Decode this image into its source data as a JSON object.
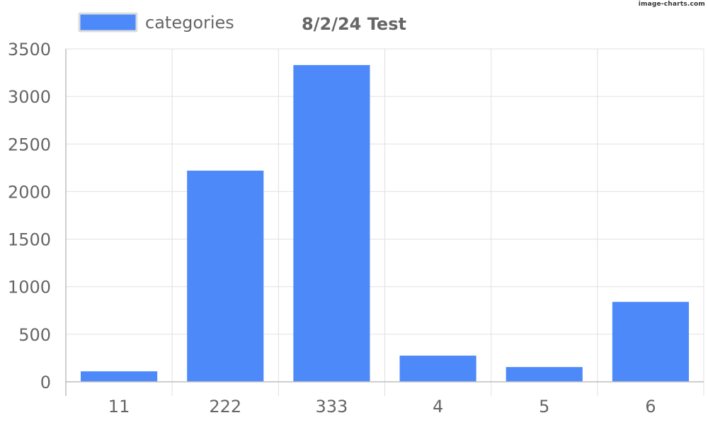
{
  "watermark": "image-charts.com",
  "colors": {
    "bar": "#4d89f9",
    "legend_border": "#dddddd",
    "text": "#666666"
  },
  "chart_data": {
    "type": "bar",
    "title": "8/2/24 Test",
    "categories": [
      "11",
      "222",
      "333",
      "4",
      "5",
      "6"
    ],
    "series": [
      {
        "name": "categories",
        "values": [
          110,
          2220,
          3330,
          275,
          155,
          840
        ]
      }
    ],
    "ylim": [
      0,
      3500
    ],
    "yticks": [
      "0",
      "500",
      "1000",
      "1500",
      "2000",
      "2500",
      "3000",
      "3500"
    ],
    "grid": true,
    "legend": "top-left"
  }
}
